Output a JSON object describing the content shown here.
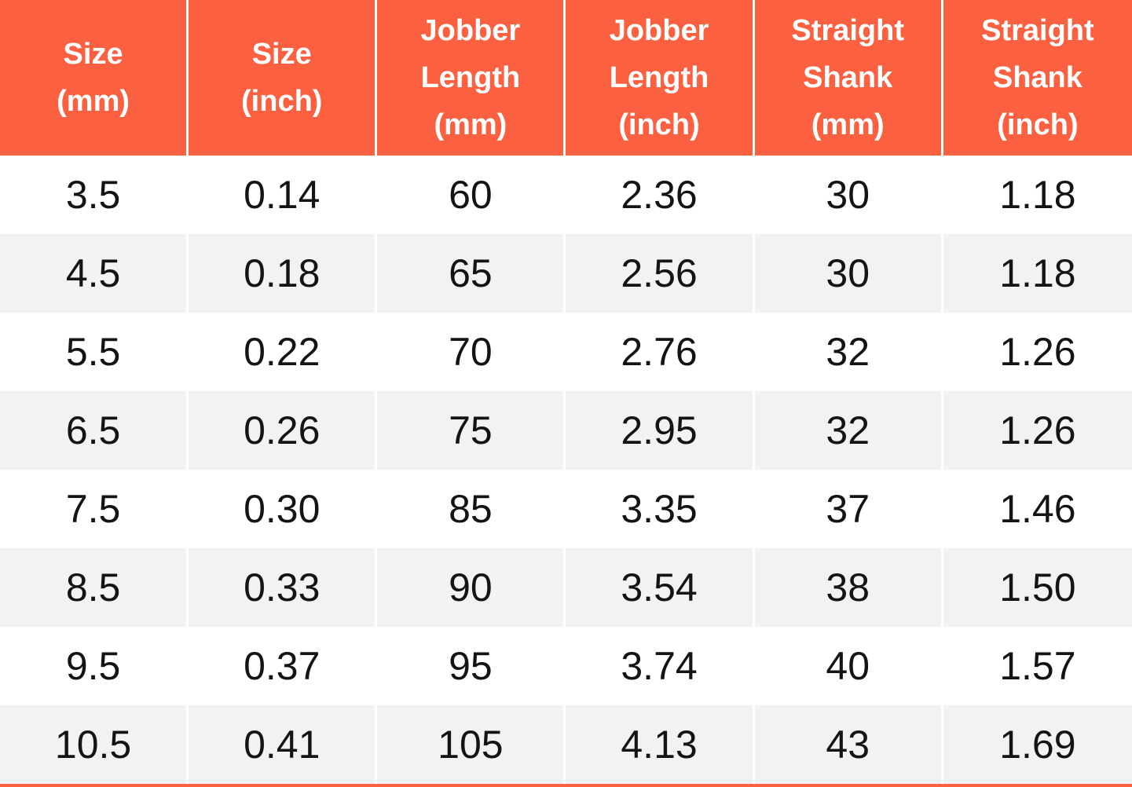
{
  "chart_data": {
    "type": "table",
    "columns": [
      "Size\n(mm)",
      "Size\n(inch)",
      "Jobber\nLength\n(mm)",
      "Jobber\nLength\n(inch)",
      "Straight\nShank\n(mm)",
      "Straight\nShank\n(inch)"
    ],
    "rows": [
      [
        "3.5",
        "0.14",
        "60",
        "2.36",
        "30",
        "1.18"
      ],
      [
        "4.5",
        "0.18",
        "65",
        "2.56",
        "30",
        "1.18"
      ],
      [
        "5.5",
        "0.22",
        "70",
        "2.76",
        "32",
        "1.26"
      ],
      [
        "6.5",
        "0.26",
        "75",
        "2.95",
        "32",
        "1.26"
      ],
      [
        "7.5",
        "0.30",
        "85",
        "3.35",
        "37",
        "1.46"
      ],
      [
        "8.5",
        "0.33",
        "90",
        "3.54",
        "38",
        "1.50"
      ],
      [
        "9.5",
        "0.37",
        "95",
        "3.74",
        "40",
        "1.57"
      ],
      [
        "10.5",
        "0.41",
        "105",
        "4.13",
        "43",
        "1.69"
      ]
    ]
  },
  "colors": {
    "header_bg": "#FB6140",
    "header_text": "#FFFFFF",
    "row_bg": "#FFFFFF",
    "row_alt_bg": "#F2F2F2",
    "cell_text": "#141414",
    "bottom_border": "#FB6140"
  }
}
